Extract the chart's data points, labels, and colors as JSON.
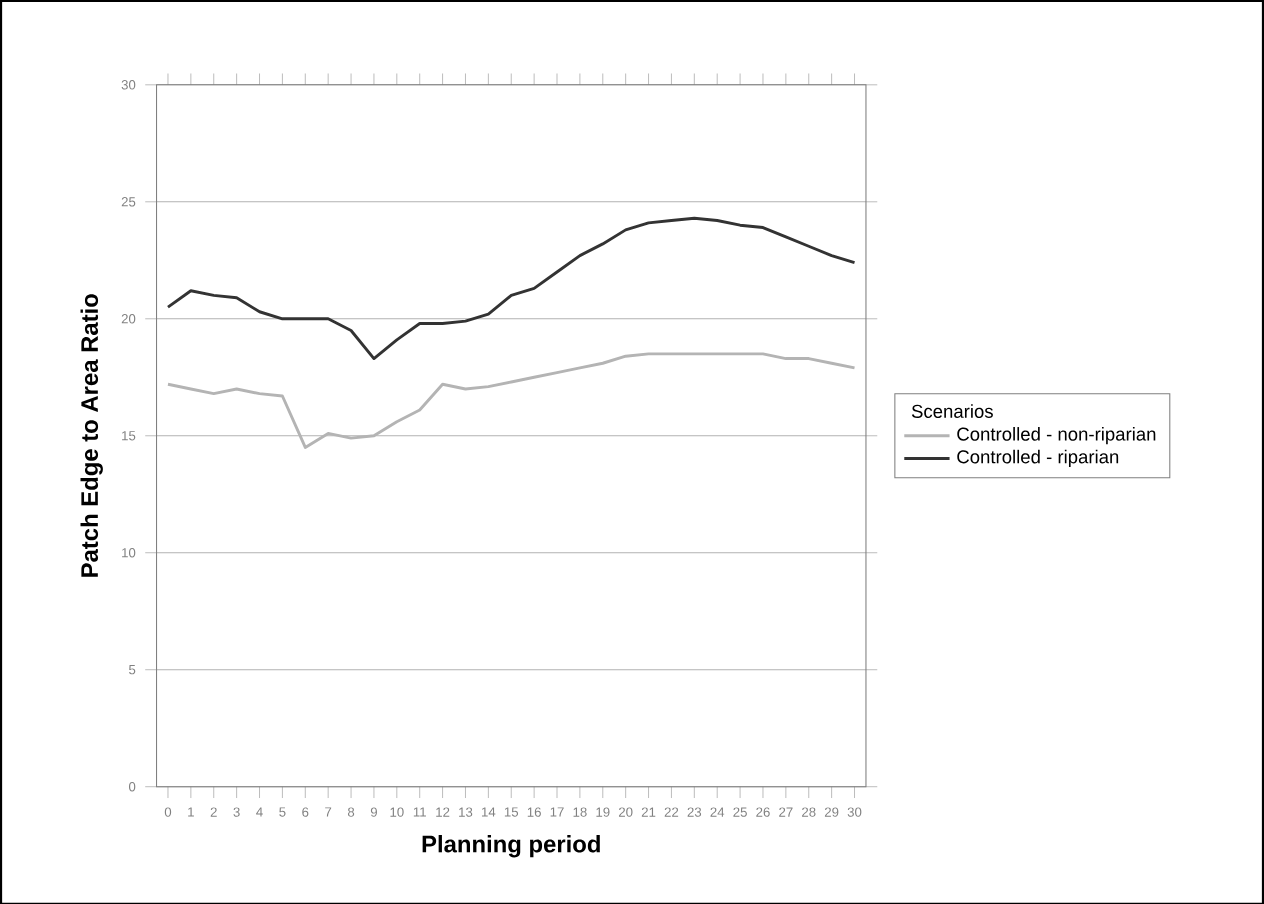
{
  "chart_data": {
    "type": "line",
    "xlabel": "Planning period",
    "ylabel": "Patch Edge to Area Ratio",
    "legend_title": "Scenarios",
    "legend": "right",
    "categories": [
      "0",
      "1",
      "2",
      "3",
      "4",
      "5",
      "6",
      "7",
      "8",
      "9",
      "10",
      "11",
      "12",
      "13",
      "14",
      "15",
      "16",
      "17",
      "18",
      "19",
      "20",
      "21",
      "22",
      "23",
      "24",
      "25",
      "26",
      "27",
      "28",
      "29",
      "30"
    ],
    "series": [
      {
        "name": "Controlled - non-riparian",
        "color": "#b4b4b4",
        "values": [
          17.2,
          17.0,
          16.8,
          17.0,
          16.8,
          16.7,
          14.5,
          15.1,
          14.9,
          15.0,
          15.6,
          16.1,
          17.2,
          17.0,
          17.1,
          17.3,
          17.5,
          17.7,
          17.9,
          18.1,
          18.4,
          18.5,
          18.5,
          18.5,
          18.5,
          18.5,
          18.5,
          18.3,
          18.3,
          18.1,
          17.9
        ]
      },
      {
        "name": "Controlled - riparian",
        "color": "#333333",
        "values": [
          20.5,
          21.2,
          21.0,
          20.9,
          20.3,
          20.0,
          20.0,
          20.0,
          19.5,
          18.3,
          19.1,
          19.8,
          19.8,
          19.9,
          20.2,
          21.0,
          21.3,
          22.0,
          22.7,
          23.2,
          23.8,
          24.1,
          24.2,
          24.3,
          24.2,
          24.0,
          23.9,
          23.5,
          23.1,
          22.7,
          22.4
        ]
      }
    ],
    "ylim": [
      0,
      30
    ],
    "yticks": [
      0,
      5,
      10,
      15,
      20,
      25,
      30
    ],
    "grid": "y",
    "marker": "none",
    "line_style": "solid"
  }
}
